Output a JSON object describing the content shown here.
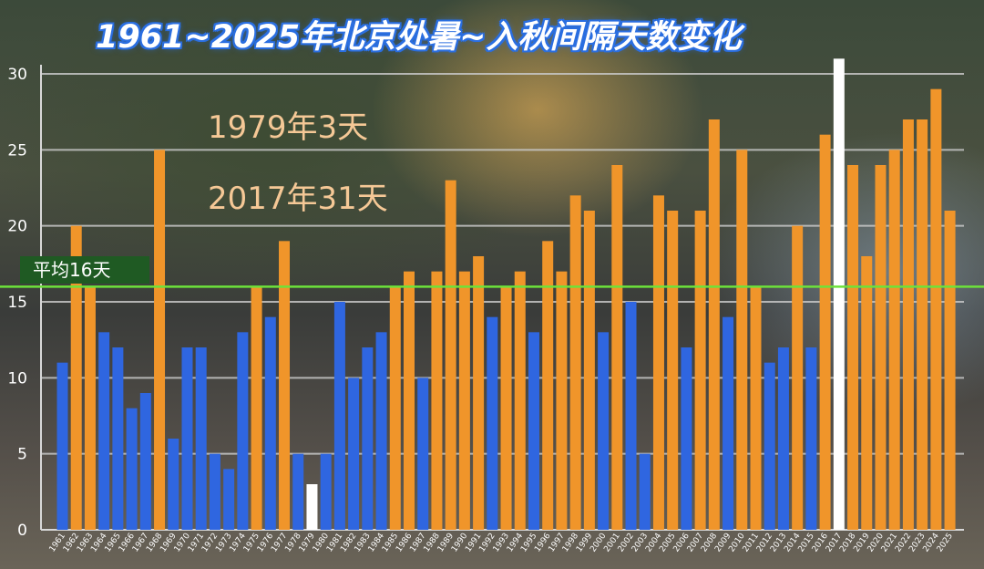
{
  "chart_data": {
    "type": "bar",
    "title": "1961~2025年北京处暑~入秋间隔天数变化",
    "annotations": [
      "1979年3天",
      "2017年31天"
    ],
    "average_label": "平均16天",
    "average_value": 16,
    "ylim": [
      0,
      30
    ],
    "yticks": [
      0,
      5,
      10,
      15,
      20,
      25,
      30
    ],
    "grid": true,
    "categories": [
      "1961",
      "1962",
      "1963",
      "1964",
      "1965",
      "1966",
      "1967",
      "1968",
      "1969",
      "1970",
      "1971",
      "1972",
      "1973",
      "1974",
      "1975",
      "1976",
      "1977",
      "1978",
      "1979",
      "1980",
      "1981",
      "1982",
      "1983",
      "1984",
      "1985",
      "1986",
      "1987",
      "1988",
      "1989",
      "1990",
      "1991",
      "1992",
      "1993",
      "1994",
      "1995",
      "1996",
      "1997",
      "1998",
      "1999",
      "2000",
      "2001",
      "2002",
      "2003",
      "2004",
      "2005",
      "2006",
      "2007",
      "2008",
      "2009",
      "2010",
      "2011",
      "2012",
      "2013",
      "2014",
      "2015",
      "2016",
      "2017",
      "2018",
      "2019",
      "2020",
      "2021",
      "2022",
      "2023",
      "2024",
      "2025"
    ],
    "values": [
      11,
      20,
      16,
      13,
      12,
      8,
      9,
      25,
      6,
      12,
      12,
      5,
      4,
      13,
      16,
      14,
      19,
      5,
      3,
      5,
      15,
      10,
      12,
      13,
      16,
      17,
      10,
      17,
      23,
      17,
      18,
      14,
      16,
      17,
      13,
      19,
      17,
      22,
      21,
      13,
      24,
      15,
      5,
      22,
      21,
      12,
      21,
      27,
      14,
      25,
      16,
      11,
      12,
      20,
      12,
      26,
      31,
      24,
      18,
      24,
      25,
      27,
      27,
      29,
      21
    ],
    "colors": {
      "below_average": "#2f66e0",
      "above_average": "#f0952a",
      "extreme": "#ffffff",
      "average_line": "#6de23a",
      "grid": "#c8c8c8"
    }
  }
}
